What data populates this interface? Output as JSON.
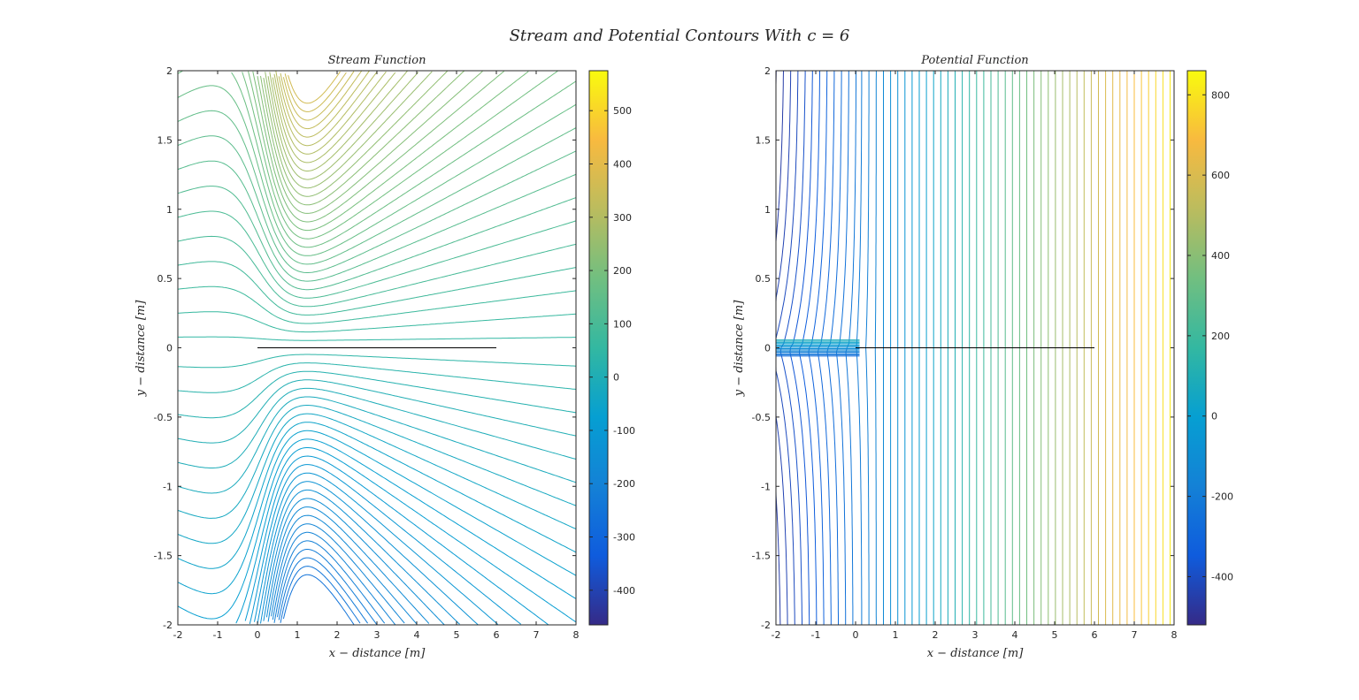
{
  "figure_title": "Stream and Potential Contours With c = 6",
  "chart_data": [
    {
      "type": "contour",
      "title": "Stream Function",
      "xlabel": "x − distance [m]",
      "ylabel": "y − distance [m]",
      "xlim": [
        -2,
        8
      ],
      "ylim": [
        -2,
        2
      ],
      "xticks": [
        "-2",
        "-1",
        "0",
        "1",
        "2",
        "3",
        "4",
        "5",
        "6",
        "7",
        "8"
      ],
      "yticks": [
        "-2",
        "-1.5",
        "-1",
        "-0.5",
        "0",
        "0.5",
        "1",
        "1.5",
        "2"
      ],
      "colorbar": {
        "ticks": [
          "-400",
          "-300",
          "-200",
          "-100",
          "0",
          "100",
          "200",
          "300",
          "400",
          "500"
        ],
        "range": [
          -465,
          575
        ]
      },
      "plate": {
        "x": [
          0,
          6
        ],
        "y": 0
      },
      "colormap": "parula"
    },
    {
      "type": "contour",
      "title": "Potential Function",
      "xlabel": "x − distance [m]",
      "ylabel": "y − distance [m]",
      "xlim": [
        -2,
        8
      ],
      "ylim": [
        -2,
        2
      ],
      "xticks": [
        "-2",
        "-1",
        "0",
        "1",
        "2",
        "3",
        "4",
        "5",
        "6",
        "7",
        "8"
      ],
      "yticks": [
        "-2",
        "-1.5",
        "-1",
        "-0.5",
        "0",
        "0.5",
        "1",
        "1.5",
        "2"
      ],
      "colorbar": {
        "ticks": [
          "-400",
          "-200",
          "0",
          "200",
          "400",
          "600",
          "800"
        ],
        "range": [
          -520,
          860
        ]
      },
      "plate": {
        "x": [
          0,
          6
        ],
        "y": 0
      },
      "colormap": "parula"
    }
  ]
}
